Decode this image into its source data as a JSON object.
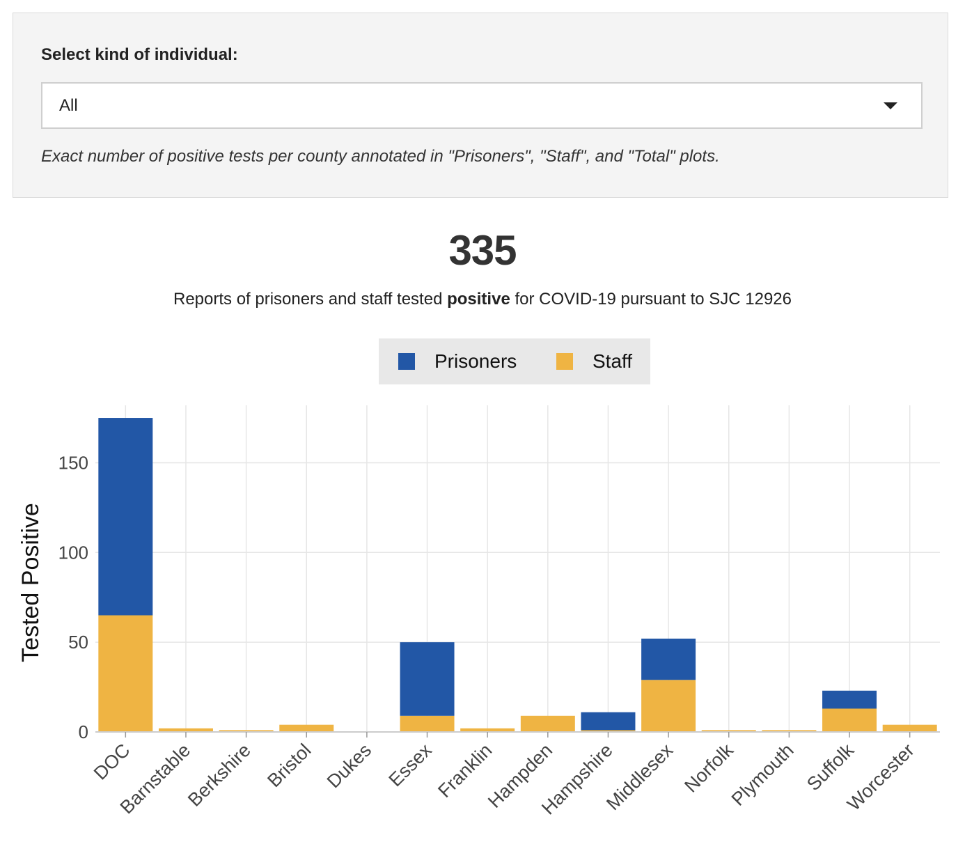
{
  "filter": {
    "label": "Select kind of individual:",
    "selected": "All",
    "note": "Exact number of positive tests per county annotated in \"Prisoners\", \"Staff\", and \"Total\" plots."
  },
  "summary": {
    "total": "335",
    "subtitle_before": "Reports of prisoners and staff tested ",
    "subtitle_bold": "positive",
    "subtitle_after": " for COVID-19 pursuant to SJC 12926"
  },
  "legend": {
    "prisoners": "Prisoners",
    "staff": "Staff"
  },
  "colors": {
    "prisoners": "#2257a6",
    "staff": "#efb443",
    "grid": "#e6e6e6"
  },
  "chart_data": {
    "type": "bar",
    "stacked": true,
    "ylabel": "Tested Positive",
    "xlabel": "",
    "ylim": [
      0,
      182
    ],
    "yticks": [
      0,
      50,
      100,
      150
    ],
    "grid": true,
    "legend_position": "top-center",
    "categories": [
      "DOC",
      "Barnstable",
      "Berkshire",
      "Bristol",
      "Dukes",
      "Essex",
      "Franklin",
      "Hampden",
      "Hampshire",
      "Middlesex",
      "Norfolk",
      "Plymouth",
      "Suffolk",
      "Worcester"
    ],
    "series": [
      {
        "name": "Staff",
        "values": [
          65,
          2,
          1,
          4,
          0,
          9,
          2,
          9,
          1,
          29,
          1,
          1,
          13,
          4
        ]
      },
      {
        "name": "Prisoners",
        "values": [
          110,
          0,
          0,
          0,
          0,
          41,
          0,
          0,
          10,
          23,
          0,
          0,
          10,
          0
        ]
      }
    ]
  }
}
